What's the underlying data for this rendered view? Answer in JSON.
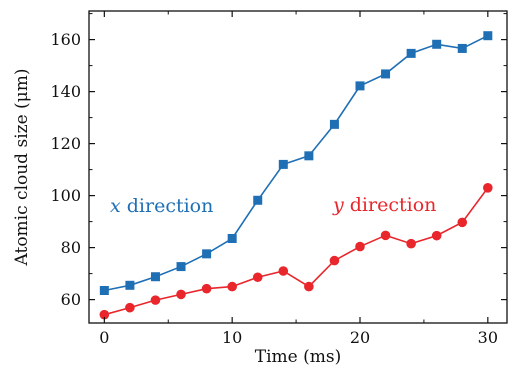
{
  "chart_data": {
    "type": "line",
    "xlabel": "Time (ms)",
    "ylabel": "Atomic cloud size (μm)",
    "xlim": [
      -1.2,
      31.5
    ],
    "ylim": [
      51,
      171
    ],
    "x_ticks": [
      0,
      10,
      20,
      30
    ],
    "x_tick_labels": [
      "0",
      "10",
      "20",
      "30"
    ],
    "y_ticks": [
      60,
      80,
      100,
      120,
      140,
      160
    ],
    "y_tick_labels": [
      "60",
      "80",
      "100",
      "120",
      "140",
      "160"
    ],
    "grid": false,
    "legend": "none",
    "series": [
      {
        "label_var": "x",
        "label_rest": " direction",
        "color": "#1f6fb5",
        "marker": "square",
        "x": [
          0,
          2,
          4,
          6,
          8,
          10,
          12,
          14,
          16,
          18,
          20,
          22,
          24,
          26,
          28,
          30
        ],
        "y": [
          63.5,
          65.5,
          68.8,
          72.7,
          77.6,
          83.5,
          98.2,
          112,
          115.3,
          127.4,
          142.2,
          146.8,
          154.7,
          158.2,
          156.6,
          161.5
        ]
      },
      {
        "label_var": "y",
        "label_rest": " direction",
        "color": "#e8262b",
        "marker": "circle",
        "x": [
          0,
          2,
          4,
          6,
          8,
          10,
          12,
          14,
          16,
          18,
          20,
          22,
          24,
          26,
          28,
          30
        ],
        "y": [
          54.2,
          56.9,
          59.8,
          62,
          64.2,
          65,
          68.6,
          71,
          65,
          75,
          80.4,
          84.7,
          81.5,
          84.6,
          89.7,
          103
        ]
      }
    ]
  }
}
